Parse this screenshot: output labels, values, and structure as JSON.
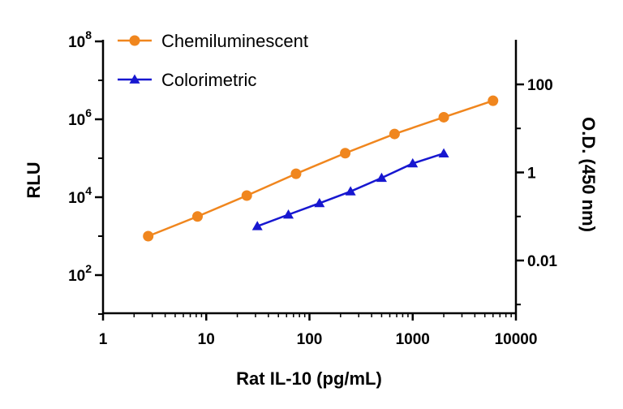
{
  "chart_data": {
    "type": "line",
    "x": {
      "label": "Rat IL-10 (pg/mL)",
      "scale": "log",
      "range": [
        1,
        10000
      ],
      "ticks": [
        1,
        10,
        100,
        1000,
        10000
      ],
      "tick_labels": [
        "1",
        "10",
        "100",
        "1000",
        "10000"
      ]
    },
    "y_left": {
      "label": "RLU",
      "scale": "log",
      "range": [
        10,
        100000000
      ],
      "ticks": [
        100,
        10000,
        1000000,
        100000000
      ],
      "tick_labels": [
        {
          "base": "10",
          "exp": "2"
        },
        {
          "base": "10",
          "exp": "4"
        },
        {
          "base": "10",
          "exp": "6"
        },
        {
          "base": "10",
          "exp": "8"
        }
      ]
    },
    "y_right": {
      "label": "O.D. (450 nm)",
      "scale": "log",
      "range": [
        0.0007,
        1000
      ],
      "ticks": [
        0.01,
        1,
        100
      ],
      "tick_labels": [
        "0.01",
        "1",
        "100"
      ]
    },
    "series": [
      {
        "name": "Chemiluminescent",
        "axis": "left",
        "color": "#F0861E",
        "marker": "circle",
        "x": [
          2.74,
          8.23,
          24.7,
          74.1,
          222,
          667,
          2000,
          6000
        ],
        "y": [
          1000,
          3200,
          11000,
          40000,
          135000,
          420000,
          1130000,
          3000000
        ]
      },
      {
        "name": "Colorimetric",
        "axis": "right",
        "color": "#1717D0",
        "marker": "triangle",
        "x": [
          31.25,
          62.5,
          125,
          250,
          500,
          1000,
          2000
        ],
        "y": [
          0.06,
          0.11,
          0.2,
          0.37,
          0.75,
          1.6,
          2.7
        ]
      }
    ],
    "legend": {
      "position": "top-left",
      "items": [
        "Chemiluminescent",
        "Colorimetric"
      ]
    },
    "grid": false
  }
}
